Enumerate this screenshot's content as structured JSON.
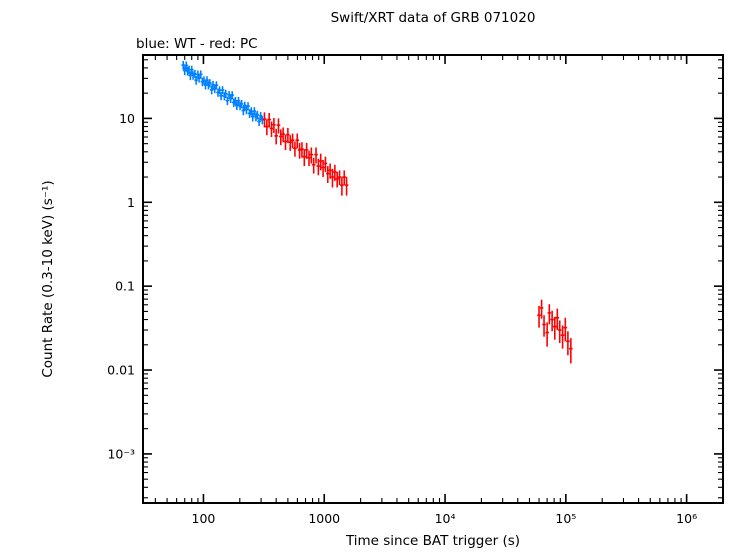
{
  "figure": {
    "background_color": "#ffffff",
    "frame_color": "#000000"
  },
  "chart_data": {
    "type": "scatter",
    "marker": "error-bars",
    "title": "Swift/XRT data of GRB 071020",
    "subtitle": "blue: WT - red: PC",
    "xlabel": "Time since BAT trigger (s)",
    "ylabel": "Count Rate (0.3-10 keV) (s⁻¹)",
    "xscale": "log",
    "yscale": "log",
    "grid": false,
    "xlim": [
      31.6,
      2000000
    ],
    "ylim": [
      0.00026,
      57
    ],
    "x_ticks": [
      {
        "value": 100,
        "label": "100"
      },
      {
        "value": 1000,
        "label": "1000"
      },
      {
        "value": 10000,
        "label": "10⁴"
      },
      {
        "value": 100000,
        "label": "10⁵"
      },
      {
        "value": 1000000,
        "label": "10⁶"
      }
    ],
    "y_ticks": [
      {
        "value": 10,
        "label": "10"
      },
      {
        "value": 1,
        "label": "1"
      },
      {
        "value": 0.1,
        "label": "0.1"
      },
      {
        "value": 0.01,
        "label": "0.01"
      },
      {
        "value": 0.001,
        "label": "10⁻³"
      }
    ],
    "series": [
      {
        "name": "WT",
        "legend": "blue: WT",
        "color": "#0080ff",
        "points": [
          [
            68,
            43.2,
            5.2
          ],
          [
            70,
            37.2,
            4.5
          ],
          [
            72,
            42.8,
            5.0
          ],
          [
            74,
            36.8,
            4.4
          ],
          [
            76,
            38.1,
            4.5
          ],
          [
            78,
            32.5,
            3.9
          ],
          [
            80,
            38.0,
            4.4
          ],
          [
            82,
            32.7,
            3.8
          ],
          [
            85,
            34.0,
            3.9
          ],
          [
            87,
            28.6,
            3.4
          ],
          [
            90,
            33.4,
            3.8
          ],
          [
            92,
            30.2,
            3.5
          ],
          [
            95,
            33.5,
            3.8
          ],
          [
            98,
            27.4,
            3.2
          ],
          [
            101,
            28.5,
            3.2
          ],
          [
            104,
            25.0,
            2.9
          ],
          [
            107,
            28.6,
            3.2
          ],
          [
            110,
            25.0,
            2.8
          ],
          [
            113,
            26.4,
            3.0
          ],
          [
            117,
            21.9,
            2.6
          ],
          [
            120,
            25.2,
            2.8
          ],
          [
            124,
            22.5,
            2.5
          ],
          [
            128,
            24.9,
            2.8
          ],
          [
            132,
            20.4,
            2.3
          ],
          [
            136,
            21.7,
            2.4
          ],
          [
            140,
            18.6,
            2.1
          ],
          [
            144,
            21.8,
            2.4
          ],
          [
            149,
            18.5,
            2.1
          ],
          [
            153,
            19.7,
            2.2
          ],
          [
            158,
            16.3,
            1.9
          ],
          [
            163,
            19.1,
            2.1
          ],
          [
            168,
            17.2,
            1.9
          ],
          [
            173,
            19.0,
            2.1
          ],
          [
            178,
            15.5,
            1.8
          ],
          [
            184,
            16.2,
            1.8
          ],
          [
            189,
            14.2,
            1.6
          ],
          [
            195,
            16.2,
            1.8
          ],
          [
            201,
            14.1,
            1.6
          ],
          [
            207,
            14.9,
            1.7
          ],
          [
            214,
            12.4,
            1.5
          ],
          [
            220,
            14.2,
            1.6
          ],
          [
            227,
            12.7,
            1.5
          ],
          [
            234,
            14.0,
            1.6
          ],
          [
            241,
            11.5,
            1.4
          ],
          [
            249,
            12.2,
            1.4
          ],
          [
            256,
            10.5,
            1.3
          ],
          [
            264,
            12.2,
            1.4
          ],
          [
            272,
            10.5,
            1.3
          ],
          [
            280,
            11.0,
            1.3
          ],
          [
            289,
            9.2,
            1.1
          ],
          [
            298,
            10.7,
            1.2
          ],
          [
            307,
            9.6,
            1.1
          ]
        ]
      },
      {
        "name": "PC",
        "legend": "red: PC",
        "color": "#ff0000",
        "points": [
          [
            320,
            9.8,
            2.0
          ],
          [
            335,
            8.0,
            1.7
          ],
          [
            350,
            9.7,
            1.9
          ],
          [
            366,
            7.6,
            1.6
          ],
          [
            383,
            8.4,
            1.7
          ],
          [
            400,
            6.2,
            1.3
          ],
          [
            418,
            8.3,
            1.7
          ],
          [
            437,
            6.1,
            1.3
          ],
          [
            457,
            6.5,
            1.3
          ],
          [
            478,
            5.3,
            1.1
          ],
          [
            500,
            6.4,
            1.3
          ],
          [
            523,
            5.2,
            1.1
          ],
          [
            547,
            5.5,
            1.1
          ],
          [
            572,
            4.4,
            0.9
          ],
          [
            598,
            5.5,
            1.1
          ],
          [
            625,
            4.2,
            0.9
          ],
          [
            654,
            4.3,
            0.9
          ],
          [
            684,
            3.5,
            0.8
          ],
          [
            715,
            4.2,
            0.9
          ],
          [
            748,
            3.4,
            0.7
          ],
          [
            782,
            3.7,
            0.8
          ],
          [
            818,
            2.8,
            0.6
          ],
          [
            855,
            3.7,
            0.8
          ],
          [
            894,
            2.7,
            0.6
          ],
          [
            935,
            3.1,
            0.7
          ],
          [
            978,
            2.6,
            0.6
          ],
          [
            1023,
            2.9,
            0.6
          ],
          [
            1070,
            2.2,
            0.5
          ],
          [
            1119,
            2.4,
            0.5
          ],
          [
            1170,
            2.0,
            0.5
          ],
          [
            1224,
            2.3,
            0.5
          ],
          [
            1280,
            1.9,
            0.4
          ],
          [
            1339,
            2.0,
            0.4
          ],
          [
            1400,
            1.6,
            0.4
          ],
          [
            1464,
            2.0,
            0.4
          ],
          [
            1531,
            1.6,
            0.4
          ],
          [
            60000,
            0.045,
            0.013
          ],
          [
            63000,
            0.055,
            0.014
          ],
          [
            66000,
            0.035,
            0.01
          ],
          [
            70000,
            0.028,
            0.009
          ],
          [
            73000,
            0.048,
            0.013
          ],
          [
            77000,
            0.04,
            0.011
          ],
          [
            81000,
            0.033,
            0.01
          ],
          [
            85000,
            0.042,
            0.012
          ],
          [
            89000,
            0.03,
            0.009
          ],
          [
            94000,
            0.026,
            0.008
          ],
          [
            99000,
            0.032,
            0.01
          ],
          [
            104000,
            0.022,
            0.007
          ],
          [
            110000,
            0.018,
            0.006
          ]
        ]
      }
    ]
  }
}
